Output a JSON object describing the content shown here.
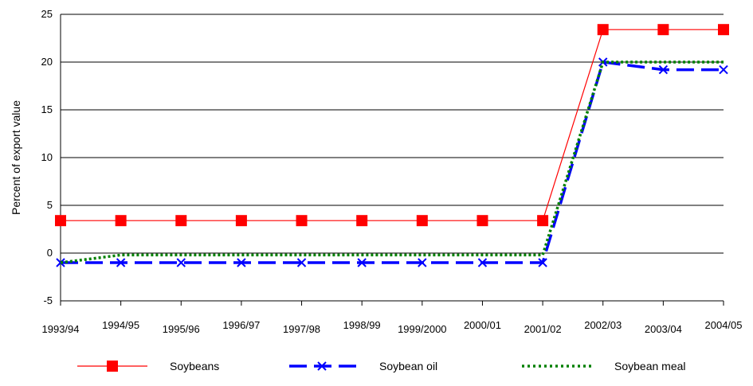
{
  "chart_data": {
    "type": "line",
    "title": "",
    "ylabel": "Percent of export value",
    "xlabel": "",
    "ylim": [
      -5,
      25
    ],
    "yticks": [
      -5,
      0,
      5,
      10,
      15,
      20,
      25
    ],
    "grid": "horizontal",
    "legend_position": "bottom",
    "categories": [
      "1993/94",
      "1994/95",
      "1995/96",
      "1996/97",
      "1997/98",
      "1998/99",
      "1999/2000",
      "2000/01",
      "2001/02",
      "2002/03",
      "2003/04",
      "2004/05"
    ],
    "series": [
      {
        "name": "Soybeans",
        "color": "#ff0000",
        "marker": "square",
        "line": "solid",
        "values": [
          3.4,
          3.4,
          3.4,
          3.4,
          3.4,
          3.4,
          3.4,
          3.4,
          3.4,
          23.4,
          23.4,
          23.4
        ]
      },
      {
        "name": "Soybean oil",
        "color": "#0000ff",
        "marker": "x",
        "line": "dashed",
        "values": [
          -1.0,
          -1.0,
          -1.0,
          -1.0,
          -1.0,
          -1.0,
          -1.0,
          -1.0,
          -1.0,
          20.0,
          19.2,
          19.2
        ]
      },
      {
        "name": "Soybean meal",
        "color": "#008000",
        "marker": "none",
        "line": "dotted",
        "values": [
          -1.0,
          -0.2,
          -0.2,
          -0.2,
          -0.2,
          -0.2,
          -0.2,
          -0.2,
          -0.2,
          20.0,
          20.0,
          20.0
        ]
      }
    ]
  }
}
